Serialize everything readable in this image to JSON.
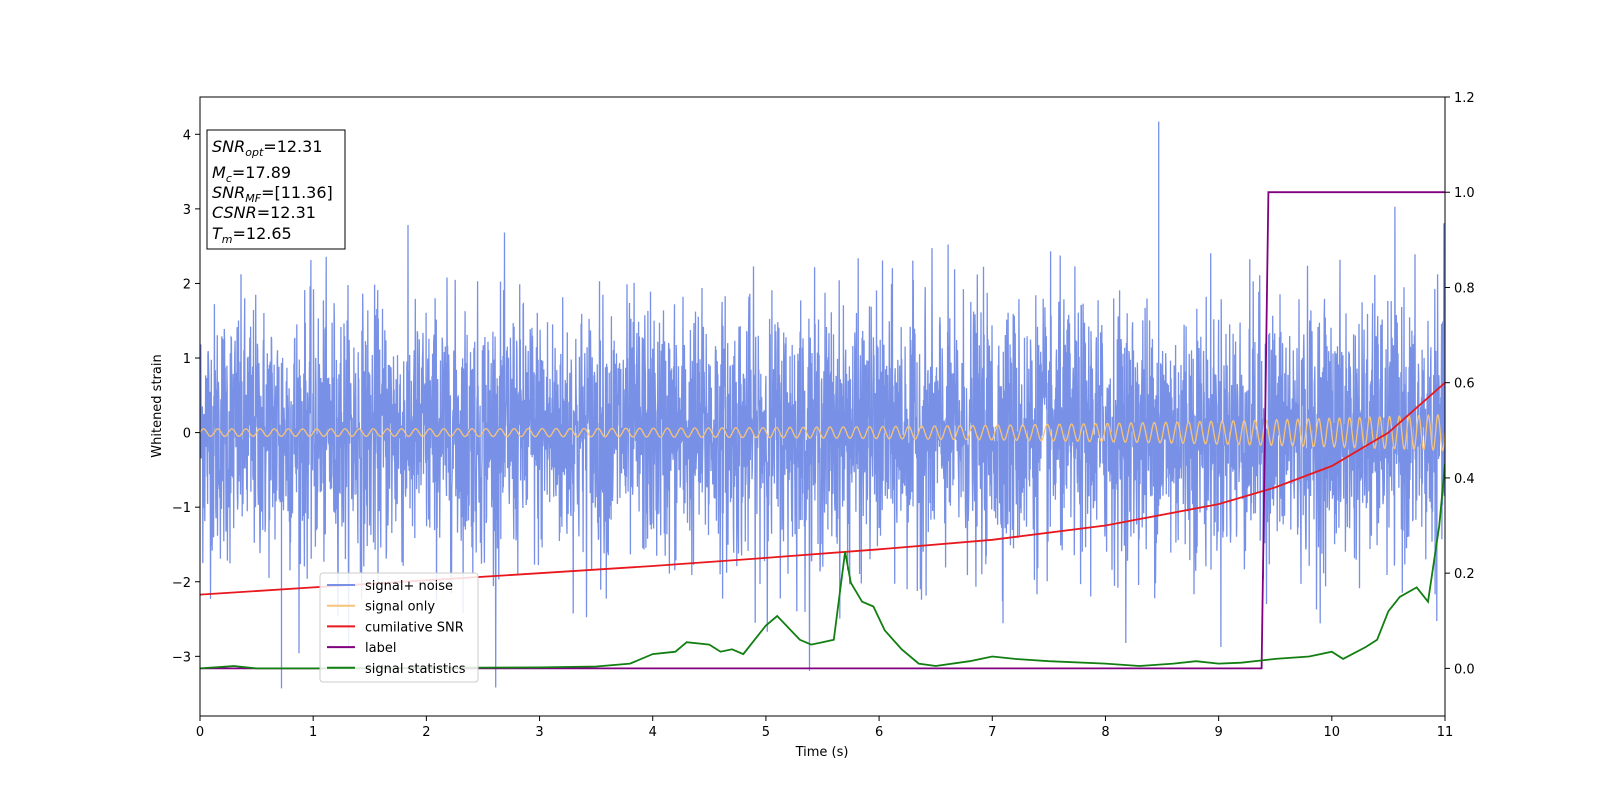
{
  "chart_data": {
    "type": "line",
    "xlabel": "Time (s)",
    "ylabel": "Whitened strain",
    "xlim": [
      0,
      11
    ],
    "ylim_left": [
      -3.8,
      4.5
    ],
    "ylim_right": [
      -0.1,
      1.2
    ],
    "x_ticks": [
      0,
      1,
      2,
      3,
      4,
      5,
      6,
      7,
      8,
      9,
      10,
      11
    ],
    "y_ticks_left": [
      -3,
      -2,
      -1,
      0,
      1,
      2,
      3,
      4
    ],
    "y_ticks_right": [
      0.0,
      0.2,
      0.4,
      0.6,
      0.8,
      1.0,
      1.2
    ],
    "grid": false,
    "annotation": {
      "lines": [
        {
          "base": "SNR",
          "sub": "opt",
          "rest": "=12.31"
        },
        {
          "base": "M",
          "sub": "c",
          "rest": "=17.89"
        },
        {
          "base": "SNR",
          "sub": "MF",
          "rest": "=[11.36]"
        },
        {
          "base": "CSNR",
          "sub": "",
          "rest": "=12.31"
        },
        {
          "base": "T",
          "sub": "m",
          "rest": "=12.65"
        }
      ]
    },
    "legend": {
      "placement": "lower-left",
      "entries": [
        {
          "label": "signal+ noise",
          "color": "#7891e6"
        },
        {
          "label": "signal only",
          "color": "#f6c37a"
        },
        {
          "label": "cumilative SNR",
          "color": "#e8181e"
        },
        {
          "label": "label",
          "color": "#800080"
        },
        {
          "label": "signal statistics",
          "color": "#127f12"
        }
      ]
    },
    "series": [
      {
        "name": "signal+ noise",
        "axis": "left",
        "color": "#7891e6",
        "kind": "noise",
        "typical_range": [
          -1.7,
          1.7
        ],
        "max_observed": 4.17,
        "min_observed": -3.43
      },
      {
        "name": "signal only",
        "axis": "left",
        "color": "#f6c37a",
        "kind": "chirp",
        "amplitude_start": 0.05,
        "amplitude_end": 0.24
      },
      {
        "name": "cumilative SNR",
        "axis": "right",
        "color": "#e8181e",
        "x": [
          0,
          1,
          2,
          3,
          4,
          5,
          6,
          7,
          8,
          9,
          9.5,
          10,
          10.5,
          11
        ],
        "y": [
          0.155,
          0.17,
          0.185,
          0.2,
          0.215,
          0.232,
          0.25,
          0.27,
          0.3,
          0.345,
          0.38,
          0.425,
          0.495,
          0.6
        ]
      },
      {
        "name": "label",
        "axis": "right",
        "color": "#800080",
        "x": [
          0,
          9.38,
          9.44,
          11
        ],
        "y": [
          0.0,
          0.0,
          1.0,
          1.0
        ]
      },
      {
        "name": "signal statistics",
        "axis": "right",
        "color": "#127f12",
        "x": [
          0,
          0.3,
          0.5,
          1,
          2,
          3,
          3.5,
          3.8,
          4.0,
          4.2,
          4.3,
          4.5,
          4.6,
          4.7,
          4.8,
          5.0,
          5.1,
          5.2,
          5.3,
          5.4,
          5.5,
          5.6,
          5.7,
          5.75,
          5.85,
          5.95,
          6.05,
          6.2,
          6.35,
          6.5,
          6.8,
          7.0,
          7.2,
          7.5,
          8.0,
          8.3,
          8.6,
          8.8,
          9.0,
          9.2,
          9.5,
          9.8,
          10.0,
          10.1,
          10.3,
          10.4,
          10.5,
          10.6,
          10.75,
          10.85,
          10.95,
          11.0
        ],
        "y": [
          0.0,
          0.005,
          0.0,
          0.0,
          0.001,
          0.002,
          0.004,
          0.01,
          0.03,
          0.035,
          0.055,
          0.05,
          0.035,
          0.04,
          0.03,
          0.09,
          0.11,
          0.085,
          0.06,
          0.05,
          0.055,
          0.06,
          0.245,
          0.18,
          0.14,
          0.13,
          0.08,
          0.04,
          0.01,
          0.005,
          0.015,
          0.025,
          0.02,
          0.015,
          0.01,
          0.005,
          0.01,
          0.015,
          0.01,
          0.012,
          0.02,
          0.025,
          0.035,
          0.02,
          0.045,
          0.06,
          0.12,
          0.15,
          0.17,
          0.14,
          0.3,
          0.43
        ]
      }
    ]
  }
}
